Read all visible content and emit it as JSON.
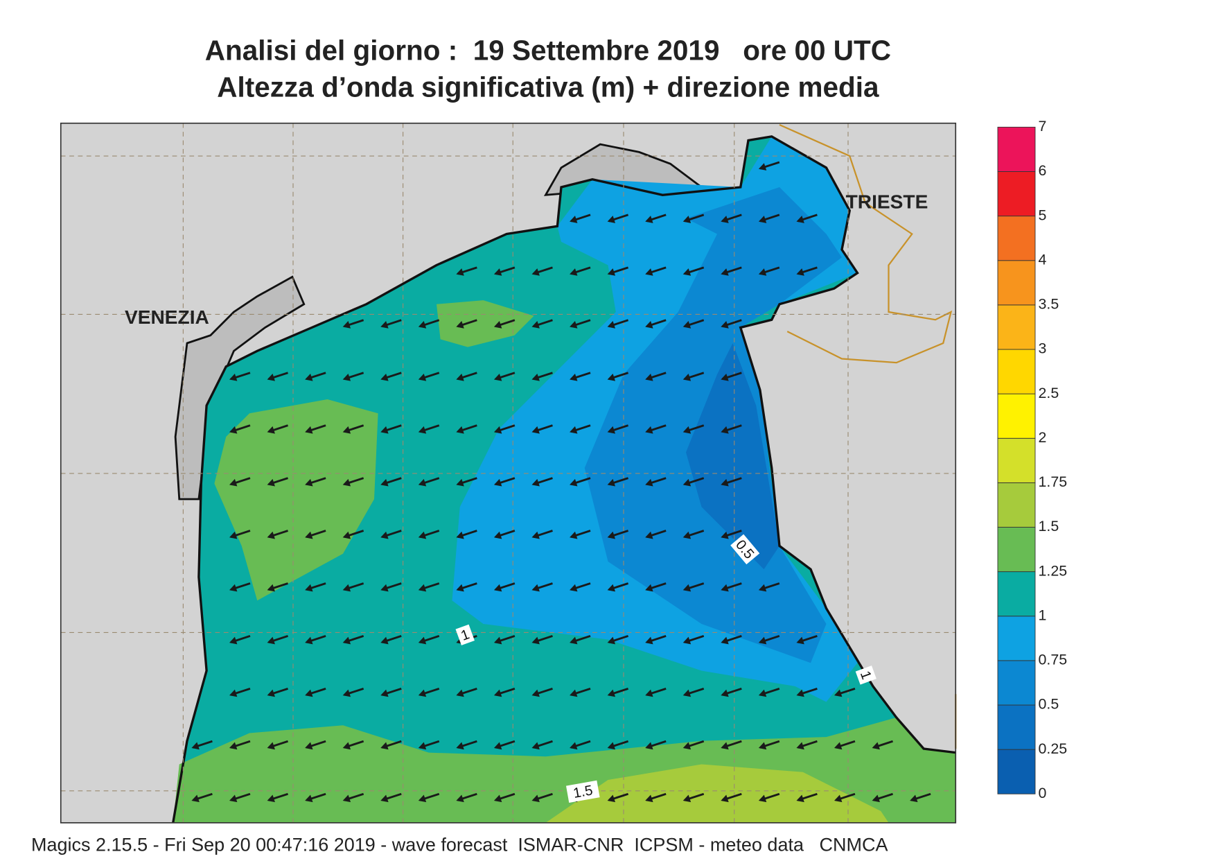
{
  "header": {
    "title": "Analisi del giorno :  19 Settembre 2019   ore 00 UTC",
    "subtitle": "Altezza d’onda significativa (m) + direzione media"
  },
  "map": {
    "places": [
      "VENEZIA",
      "TRIESTE"
    ],
    "contour_labels": [
      "0.5",
      "1",
      "1.5",
      "1"
    ]
  },
  "colorbar": {
    "labels": [
      "0",
      "0.25",
      "0.5",
      "0.75",
      "1",
      "1.25",
      "1.5",
      "1.75",
      "2",
      "2.5",
      "3",
      "3.5",
      "4",
      "5",
      "6",
      "7"
    ],
    "colors": [
      "#0a5fb0",
      "#0b72c2",
      "#0c88d2",
      "#0ea2e2",
      "#0aaca2",
      "#68bc54",
      "#a6cb3c",
      "#d4e02a",
      "#fff200",
      "#ffd700",
      "#fbb418",
      "#f7941d",
      "#f37021",
      "#ed1c24",
      "#ec145a"
    ]
  },
  "footer": "Magics 2.15.5 - Fri Sep 20 00:47:16 2019 - wave forecast  ISMAR-CNR  ICPSM - meteo data   CNMCA"
}
